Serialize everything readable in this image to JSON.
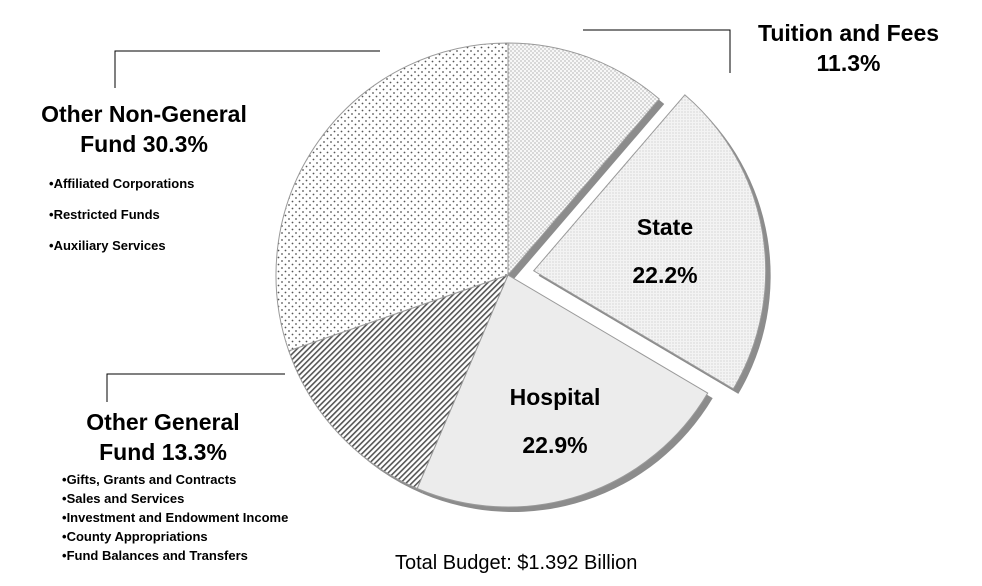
{
  "chart_data": {
    "type": "pie",
    "title": "",
    "slices": [
      {
        "label": "Tuition and Fees",
        "value": 11.3,
        "display": "11.3%",
        "exploded": false,
        "fill": "dots-fine"
      },
      {
        "label": "State",
        "value": 22.2,
        "display": "22.2%",
        "exploded": true,
        "fill": "stipple"
      },
      {
        "label": "Hospital",
        "value": 22.9,
        "display": "22.9%",
        "exploded": false,
        "fill": "light-gray"
      },
      {
        "label": "Other General Fund",
        "value": 13.3,
        "display": "13.3%",
        "exploded": false,
        "fill": "diagonal-hatch"
      },
      {
        "label": "Other Non-General Fund",
        "value": 30.3,
        "display": "30.3%",
        "exploded": false,
        "fill": "dots-coarse"
      }
    ],
    "legend": "none",
    "style": "3d-shadow"
  },
  "labels": {
    "tuition": {
      "line1": "Tuition and Fees",
      "line2": "11.3%"
    },
    "state": {
      "name": "State",
      "pct": "22.2%"
    },
    "hospital": {
      "name": "Hospital",
      "pct": "22.9%"
    },
    "other_non_general": {
      "line1": "Other Non-General",
      "line2_text": "Fund ",
      "line2_pct": "30.3%",
      "bullets": [
        "Affiliated Corporations",
        "Restricted Funds",
        "Auxiliary Services"
      ]
    },
    "other_general": {
      "line1": "Other General",
      "line2_text": "Fund ",
      "line2_pct": "13.3%",
      "bullets": [
        "Gifts, Grants and Contracts",
        "Sales and Services",
        "Investment and Endowment Income",
        "County Appropriations",
        "Fund Balances and Transfers"
      ]
    }
  },
  "footer": {
    "total": "Total Budget:  $1.392 Billion"
  }
}
